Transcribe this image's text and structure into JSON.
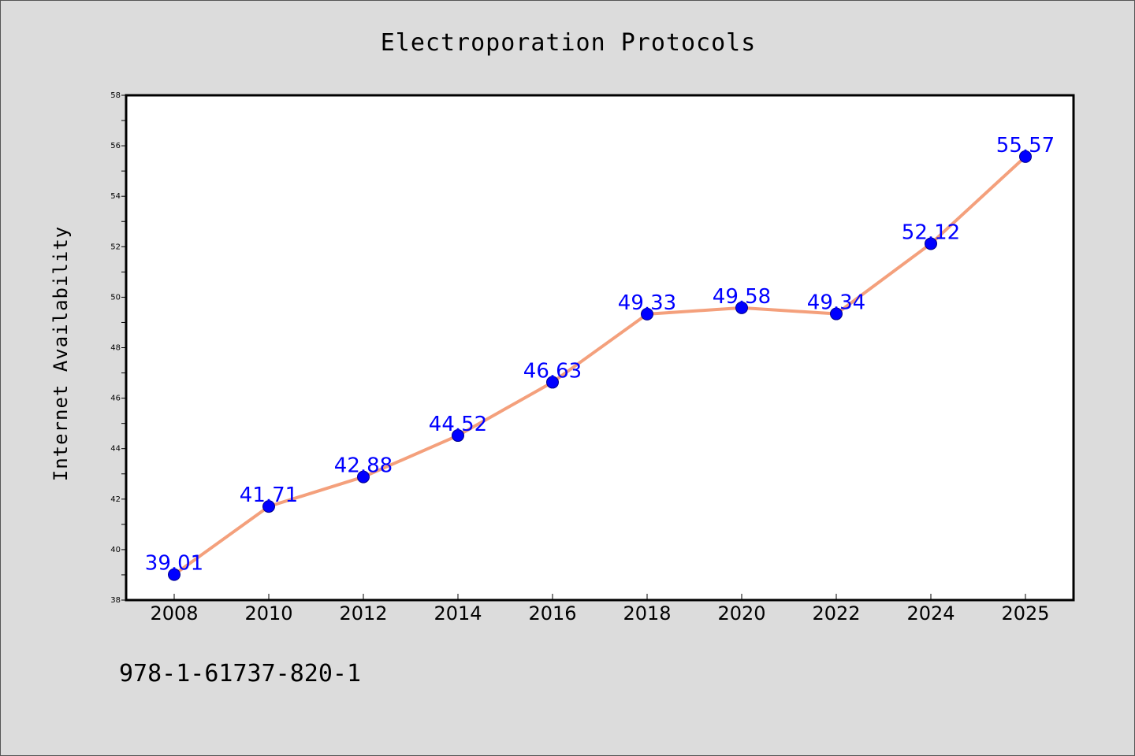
{
  "chart_data": {
    "type": "line",
    "title": "Electroporation Protocols",
    "xlabel": "",
    "ylabel": "Internet Availability",
    "categories": [
      "2008",
      "2010",
      "2012",
      "2014",
      "2016",
      "2018",
      "2020",
      "2022",
      "2024",
      "2025"
    ],
    "series": [
      {
        "values": [
          39.01,
          41.71,
          42.88,
          44.52,
          46.63,
          49.33,
          49.58,
          49.34,
          52.12,
          55.57
        ],
        "labels": [
          "39.01",
          "41.71",
          "42.88",
          "44.52",
          "46.63",
          "49.33",
          "49.58",
          "49.34",
          "52.12",
          "55.57"
        ]
      }
    ],
    "ylim": [
      38,
      58
    ],
    "yticks": [
      38,
      40,
      42,
      44,
      46,
      48,
      50,
      52,
      54,
      56,
      58
    ],
    "ytick_labels": [
      "38",
      "40",
      "42",
      "44",
      "46",
      "48",
      "50",
      "52",
      "54",
      "56",
      "58"
    ],
    "grid": false,
    "legend": "none",
    "colors": {
      "line": "#f4a07c",
      "marker": "#0000ff",
      "marker_edge": "#00008b",
      "data_label": "#0000ff",
      "plot_background": "#ffffff",
      "figure_background": "#dcdcdc"
    }
  },
  "footer": {
    "code": "978-1-61737-820-1"
  }
}
